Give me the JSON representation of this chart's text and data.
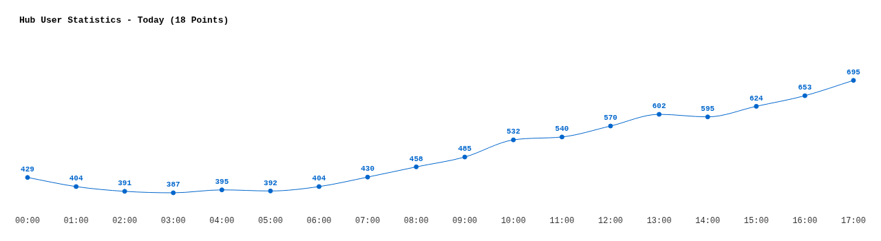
{
  "chart_data": {
    "type": "line",
    "title": "Hub User Statistics - Today (18 Points)",
    "categories": [
      "00:00",
      "01:00",
      "02:00",
      "03:00",
      "04:00",
      "05:00",
      "06:00",
      "07:00",
      "08:00",
      "09:00",
      "10:00",
      "11:00",
      "12:00",
      "13:00",
      "14:00",
      "15:00",
      "16:00",
      "17:00"
    ],
    "series": [
      {
        "color": "#0066cc",
        "values": [
          429,
          404,
          391,
          387,
          395,
          392,
          404,
          430,
          458,
          485,
          532,
          540,
          570,
          602,
          595,
          624,
          653,
          695
        ]
      }
    ],
    "data_labels": true,
    "marker": "circle",
    "grid": false,
    "legend": false
  }
}
